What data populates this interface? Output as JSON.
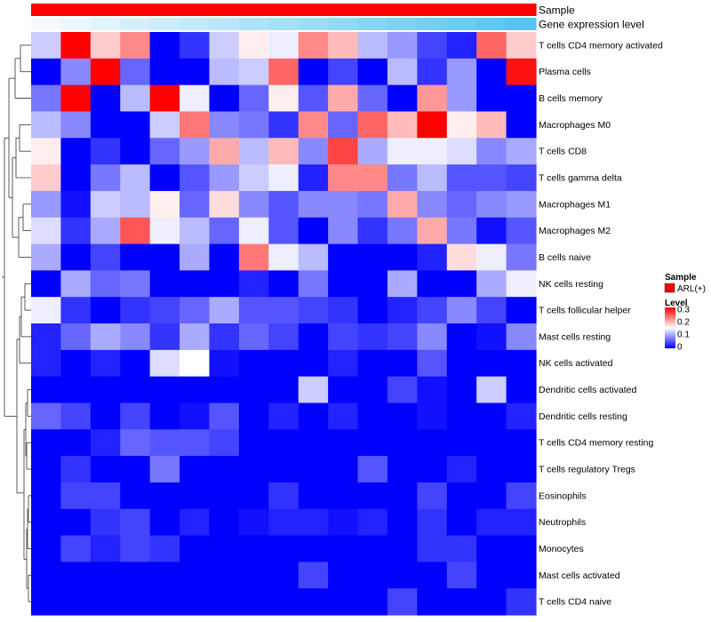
{
  "chart_data": {
    "type": "heatmap",
    "rows": [
      "T cells CD4 memory activated",
      "Plasma cells",
      "B cells memory",
      "Macrophages M0",
      "T cells CD8",
      "T cells gamma delta",
      "Macrophages M1",
      "Macrophages M2",
      "B cells naive",
      "NK cells resting",
      "T cells follicular helper",
      "Mast cells resting",
      "NK cells activated",
      "Dendritic cells activated",
      "Dendritic cells resting",
      "T cells CD4 memory resting",
      "T cells regulatory  Tregs",
      "Eosinophils",
      "Neutrophils",
      "Monocytes",
      "Mast cells activated",
      "T cells CD4 naive"
    ],
    "values": [
      [
        0.12,
        0.3,
        0.18,
        0.22,
        0.0,
        0.03,
        0.12,
        0.16,
        0.14,
        0.22,
        0.19,
        0.11,
        0.09,
        0.04,
        0.02,
        0.24,
        0.18
      ],
      [
        0.0,
        0.08,
        0.3,
        0.06,
        0.0,
        0.0,
        0.11,
        0.12,
        0.24,
        0.0,
        0.04,
        0.0,
        0.11,
        0.03,
        0.09,
        0.0,
        0.29
      ],
      [
        0.07,
        0.3,
        0.0,
        0.11,
        0.3,
        0.14,
        0.0,
        0.06,
        0.16,
        0.05,
        0.2,
        0.06,
        0.0,
        0.21,
        0.09,
        0.0,
        0.0
      ],
      [
        0.11,
        0.08,
        0.0,
        0.0,
        0.12,
        0.23,
        0.08,
        0.07,
        0.03,
        0.22,
        0.06,
        0.24,
        0.19,
        0.3,
        0.16,
        0.19,
        0.0
      ],
      [
        0.16,
        0.0,
        0.03,
        0.0,
        0.06,
        0.09,
        0.2,
        0.11,
        0.19,
        0.08,
        0.26,
        0.1,
        0.14,
        0.14,
        0.13,
        0.08,
        0.1
      ],
      [
        0.18,
        0.0,
        0.07,
        0.11,
        0.0,
        0.05,
        0.09,
        0.12,
        0.14,
        0.02,
        0.22,
        0.22,
        0.07,
        0.11,
        0.05,
        0.05,
        0.04
      ],
      [
        0.09,
        0.01,
        0.12,
        0.11,
        0.16,
        0.06,
        0.17,
        0.08,
        0.05,
        0.08,
        0.08,
        0.07,
        0.2,
        0.08,
        0.06,
        0.08,
        0.09
      ],
      [
        0.13,
        0.03,
        0.1,
        0.25,
        0.14,
        0.11,
        0.06,
        0.14,
        0.05,
        0.0,
        0.08,
        0.03,
        0.07,
        0.2,
        0.07,
        0.01,
        0.05
      ],
      [
        0.1,
        0.0,
        0.04,
        0.0,
        0.0,
        0.1,
        0.0,
        0.23,
        0.14,
        0.11,
        0.0,
        0.0,
        0.0,
        0.02,
        0.17,
        0.14,
        0.07
      ],
      [
        0.0,
        0.1,
        0.06,
        0.07,
        0.0,
        0.0,
        0.0,
        0.02,
        0.0,
        0.07,
        0.0,
        0.0,
        0.1,
        0.0,
        0.0,
        0.1,
        0.14
      ],
      [
        0.14,
        0.03,
        0.0,
        0.03,
        0.04,
        0.06,
        0.1,
        0.05,
        0.05,
        0.04,
        0.03,
        0.0,
        0.02,
        0.04,
        0.08,
        0.04,
        0.0
      ],
      [
        0.02,
        0.06,
        0.1,
        0.08,
        0.03,
        0.1,
        0.03,
        0.06,
        0.04,
        0.0,
        0.04,
        0.03,
        0.04,
        0.08,
        0.0,
        0.01,
        0.08
      ],
      [
        0.02,
        0.0,
        0.02,
        0.0,
        0.13,
        0.15,
        0.01,
        0.0,
        0.0,
        0.0,
        0.02,
        0.0,
        0.0,
        0.05,
        0.0,
        0.0,
        0.0
      ],
      [
        0.0,
        0.0,
        0.0,
        0.0,
        0.0,
        0.0,
        0.0,
        0.0,
        0.0,
        0.12,
        0.0,
        0.0,
        0.04,
        0.01,
        0.0,
        0.12,
        0.0
      ],
      [
        0.06,
        0.04,
        0.0,
        0.04,
        0.0,
        0.01,
        0.05,
        0.0,
        0.02,
        0.0,
        0.02,
        0.0,
        0.0,
        0.01,
        0.0,
        0.0,
        0.02
      ],
      [
        0.0,
        0.0,
        0.02,
        0.06,
        0.05,
        0.05,
        0.04,
        0.0,
        0.0,
        0.0,
        0.0,
        0.0,
        0.0,
        0.0,
        0.0,
        0.0,
        0.0
      ],
      [
        0.0,
        0.03,
        0.0,
        0.0,
        0.07,
        0.0,
        0.0,
        0.0,
        0.0,
        0.0,
        0.0,
        0.05,
        0.0,
        0.0,
        0.02,
        0.0,
        0.0
      ],
      [
        0.0,
        0.04,
        0.04,
        0.0,
        0.0,
        0.0,
        0.0,
        0.0,
        0.03,
        0.0,
        0.0,
        0.0,
        0.0,
        0.04,
        0.0,
        0.0,
        0.04
      ],
      [
        0.0,
        0.0,
        0.03,
        0.04,
        0.0,
        0.02,
        0.0,
        0.01,
        0.02,
        0.02,
        0.01,
        0.02,
        0.0,
        0.03,
        0.0,
        0.02,
        0.02
      ],
      [
        0.0,
        0.04,
        0.02,
        0.04,
        0.03,
        0.0,
        0.0,
        0.0,
        0.0,
        0.0,
        0.0,
        0.0,
        0.0,
        0.03,
        0.03,
        0.0,
        0.0
      ],
      [
        0.0,
        0.0,
        0.0,
        0.0,
        0.0,
        0.0,
        0.0,
        0.0,
        0.0,
        0.04,
        0.0,
        0.0,
        0.0,
        0.0,
        0.04,
        0.0,
        0.0
      ],
      [
        0.0,
        0.0,
        0.0,
        0.0,
        0.0,
        0.0,
        0.0,
        0.0,
        0.0,
        0.0,
        0.0,
        0.0,
        0.04,
        0.0,
        0.0,
        0.0,
        0.03
      ]
    ],
    "column_annotations": [
      {
        "name": "Sample",
        "type": "categorical",
        "values": [
          "ARL(+)",
          "ARL(+)",
          "ARL(+)",
          "ARL(+)",
          "ARL(+)",
          "ARL(+)",
          "ARL(+)",
          "ARL(+)",
          "ARL(+)",
          "ARL(+)",
          "ARL(+)",
          "ARL(+)",
          "ARL(+)",
          "ARL(+)",
          "ARL(+)",
          "ARL(+)",
          "ARL(+)"
        ],
        "colors": {
          "ARL(+)": "#ff0000"
        }
      },
      {
        "name": "Gene expression level",
        "type": "continuous",
        "values": [
          0.0,
          0.06,
          0.12,
          0.19,
          0.25,
          0.31,
          0.37,
          0.44,
          0.5,
          0.56,
          0.62,
          0.69,
          0.75,
          0.81,
          0.87,
          0.94,
          1.0
        ],
        "colors": [
          "#f4fafd",
          "#56c5ef"
        ]
      }
    ],
    "legend": {
      "sample_title": "Sample",
      "sample_items": [
        {
          "label": "ARL(+)",
          "color": "#ff0000"
        }
      ],
      "level_title": "Level",
      "level_ticks": [
        {
          "value": 0.3,
          "label": "0.3"
        },
        {
          "value": 0.2,
          "label": "0.2"
        },
        {
          "value": 0.1,
          "label": "0.1"
        },
        {
          "value": 0.0,
          "label": "0"
        }
      ],
      "placement": "right"
    },
    "color_scale": {
      "min": 0,
      "mid": 0.15,
      "max": 0.3,
      "low": "#0000ff",
      "mid_color": "#ffffff",
      "high": "#ff0000"
    },
    "row_dendrogram": true,
    "column_dendrogram": false
  }
}
